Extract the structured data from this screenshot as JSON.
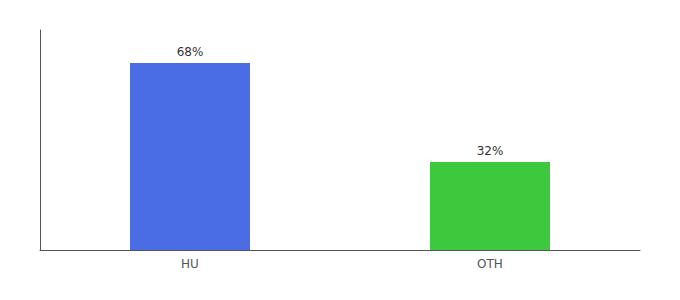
{
  "chart_data": {
    "type": "bar",
    "categories": [
      "HU",
      "OTH"
    ],
    "values": [
      68,
      32
    ],
    "value_labels": [
      "68%",
      "32%"
    ],
    "colors": [
      "#4a6de5",
      "#3dc93d"
    ],
    "ylim": [
      0,
      80
    ],
    "data_labels": true,
    "tick_labels": "x",
    "grid": false
  }
}
